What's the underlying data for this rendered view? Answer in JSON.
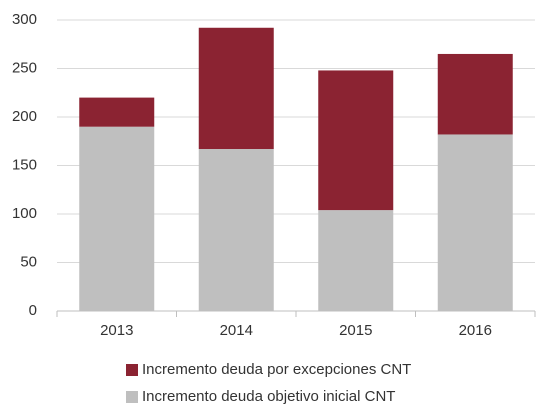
{
  "chart_data": {
    "type": "stacked_bar",
    "categories": [
      "2013",
      "2014",
      "2015",
      "2016"
    ],
    "series": [
      {
        "name": "Incremento deuda objetivo inicial CNT",
        "color": "#bfbfbf",
        "values": [
          190,
          167,
          104,
          182
        ]
      },
      {
        "name": "Incremento deuda por excepciones CNT",
        "color": "#8b2332",
        "values": [
          30,
          125,
          144,
          83
        ]
      }
    ],
    "ylim": [
      0,
      300
    ],
    "yticks": [
      0,
      50,
      100,
      150,
      200,
      250,
      300
    ],
    "grid": true
  }
}
